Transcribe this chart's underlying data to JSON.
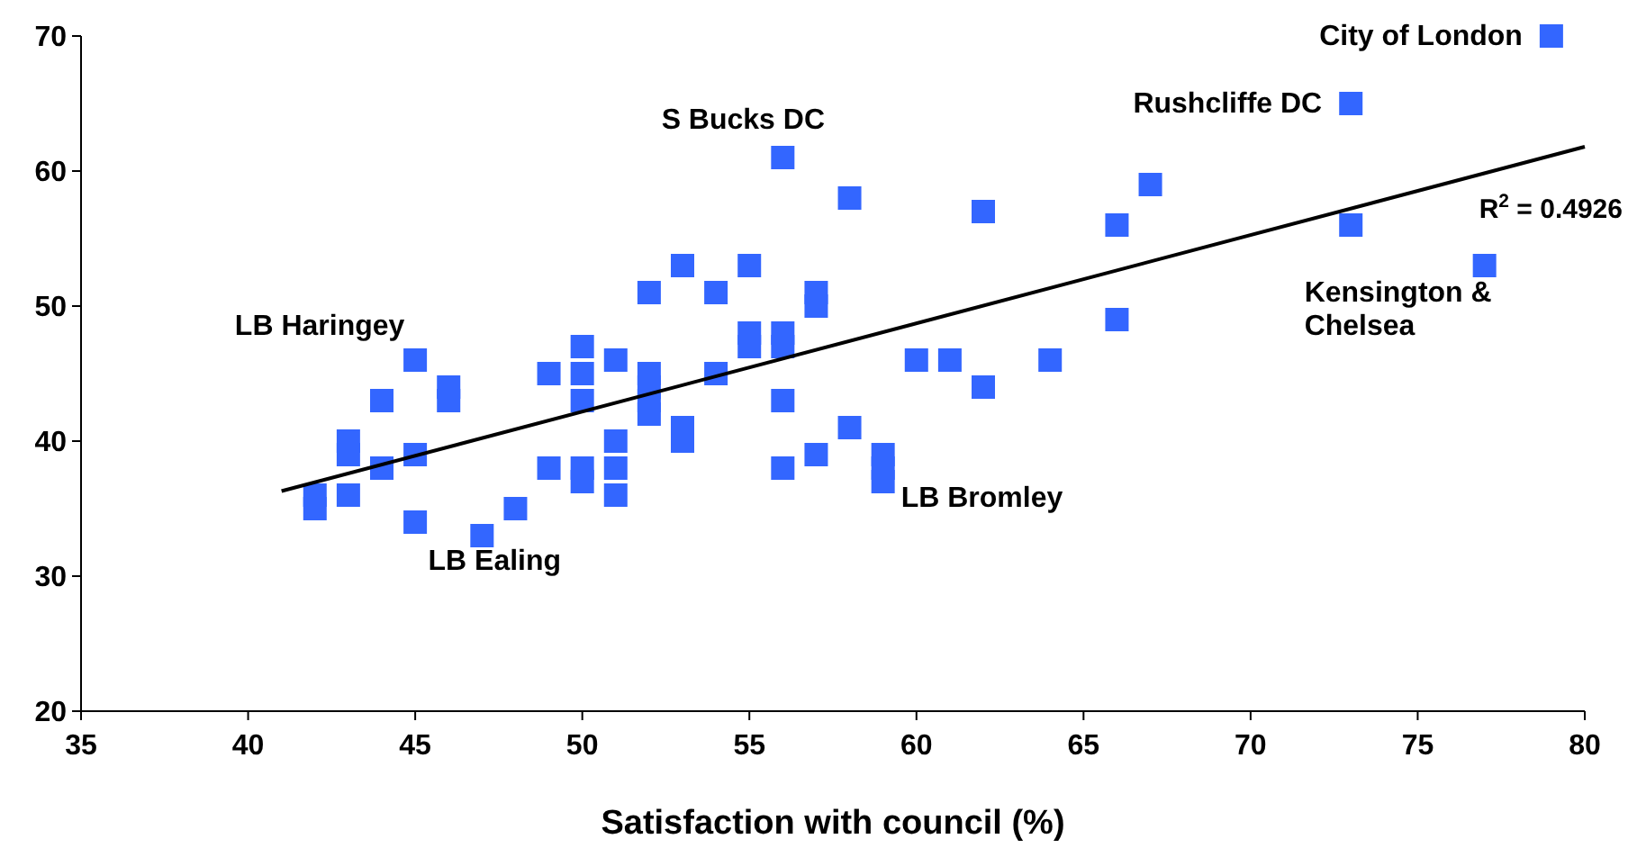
{
  "chart_data": {
    "type": "scatter",
    "xlabel": "Satisfaction with council (%)",
    "xlim": [
      35,
      80
    ],
    "xticks": [
      35,
      40,
      45,
      50,
      55,
      60,
      65,
      70,
      75,
      80
    ],
    "ylim": [
      20,
      70
    ],
    "yticks": [
      20,
      30,
      40,
      50,
      60,
      70
    ],
    "grid": false,
    "series": [
      {
        "color": "#3366ff",
        "marker": "square",
        "x": [
          42,
          42,
          43,
          43,
          43,
          44,
          44,
          45,
          45,
          45,
          46,
          46,
          47,
          48,
          49,
          49,
          50,
          50,
          50,
          50,
          50,
          51,
          51,
          51,
          51,
          52,
          52,
          52,
          52,
          52,
          53,
          53,
          53,
          54,
          54,
          55,
          55,
          55,
          56,
          56,
          56,
          56,
          56,
          57,
          57,
          57,
          58,
          58,
          59,
          59,
          59,
          60,
          61,
          62,
          62,
          64,
          66,
          66,
          67,
          73,
          73,
          77,
          79
        ],
        "values": [
          36,
          35,
          40,
          39,
          36,
          43,
          38,
          46,
          39,
          34,
          44,
          43,
          33,
          35,
          45,
          38,
          47,
          45,
          43,
          38,
          37,
          46,
          40,
          38,
          36,
          51,
          45,
          44,
          43,
          42,
          53,
          41,
          40,
          51,
          45,
          53,
          48,
          47,
          61,
          48,
          47,
          43,
          38,
          51,
          50,
          39,
          58,
          41,
          39,
          38,
          37,
          46,
          46,
          57,
          44,
          46,
          56,
          49,
          59,
          65,
          56,
          53,
          70
        ]
      },
      {
        "type": "line",
        "color": "#000000",
        "x": [
          41,
          80
        ],
        "values": [
          36.3,
          61.8
        ]
      }
    ],
    "annotations": [
      {
        "text": "City of London",
        "x": 79,
        "y": 70
      },
      {
        "text": "Rushcliffe DC",
        "x": 73,
        "y": 65
      },
      {
        "text": "S Bucks DC",
        "x": 56,
        "y": 61
      },
      {
        "text": "LB Haringey",
        "x": 45,
        "y": 46
      },
      {
        "text": "LB Ealing",
        "x": 47,
        "y": 33
      },
      {
        "text": "LB Bromley",
        "x": 59,
        "y": 37
      },
      {
        "text": "Kensington & Chelsea",
        "x": 77,
        "y": 53
      },
      "R$^{2}$ = 0.4926"
    ]
  }
}
